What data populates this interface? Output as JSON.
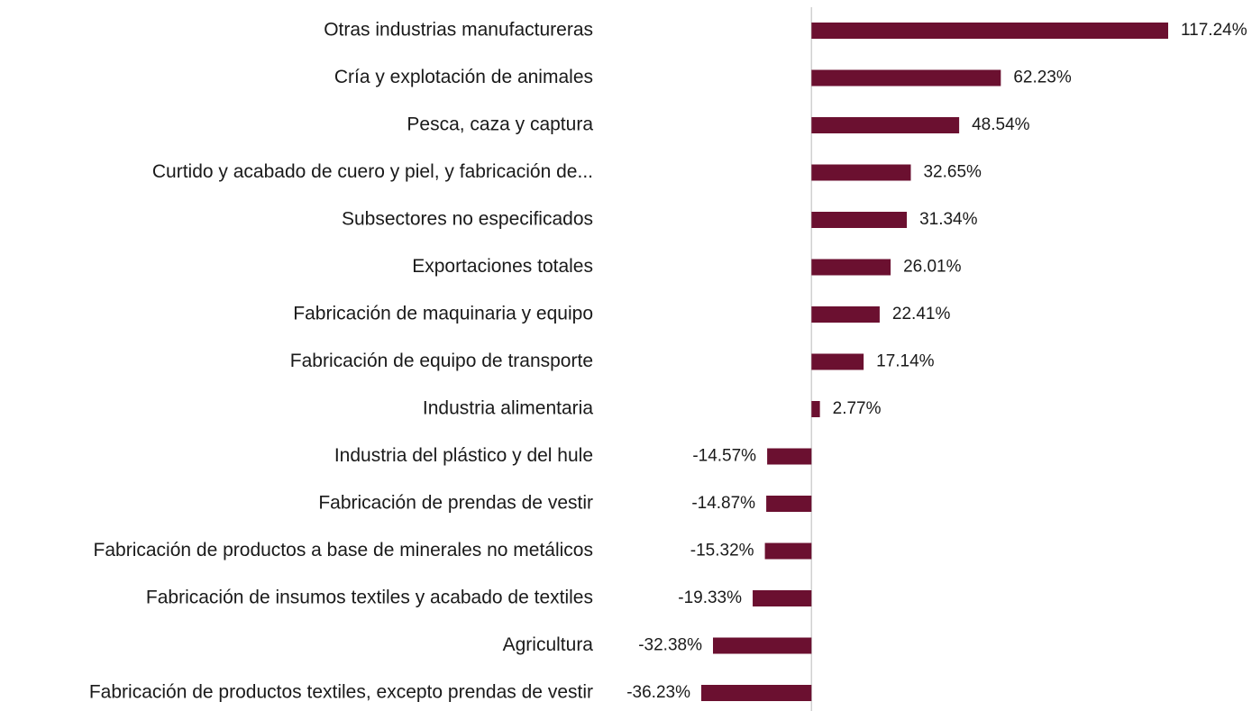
{
  "chart_data": {
    "type": "barh",
    "categories": [
      "Otras industrias manufactureras",
      "Cría y explotación de animales",
      "Pesca, caza y captura",
      "Curtido y acabado de cuero y piel, y fabricación de...",
      "Subsectores no especificados",
      "Exportaciones totales",
      "Fabricación de maquinaria y equipo",
      "Fabricación de equipo de transporte",
      "Industria alimentaria",
      "Industria del plástico y del hule",
      "Fabricación de prendas de vestir",
      "Fabricación de productos a base de minerales no metálicos",
      "Fabricación de insumos textiles y acabado de textiles",
      "Agricultura",
      "Fabricación de productos textiles, excepto prendas de vestir"
    ],
    "values": [
      117.24,
      62.23,
      48.54,
      32.65,
      31.34,
      26.01,
      22.41,
      17.14,
      2.77,
      -14.57,
      -14.87,
      -15.32,
      -19.33,
      -32.38,
      -36.23
    ],
    "value_labels": [
      "117.24%",
      "62.23%",
      "48.54%",
      "32.65%",
      "31.34%",
      "26.01%",
      "22.41%",
      "17.14%",
      "2.77%",
      "-14.57%",
      "-14.87%",
      "-15.32%",
      "-19.33%",
      "-32.38%",
      "-36.23%"
    ],
    "color": "#6b1030"
  }
}
